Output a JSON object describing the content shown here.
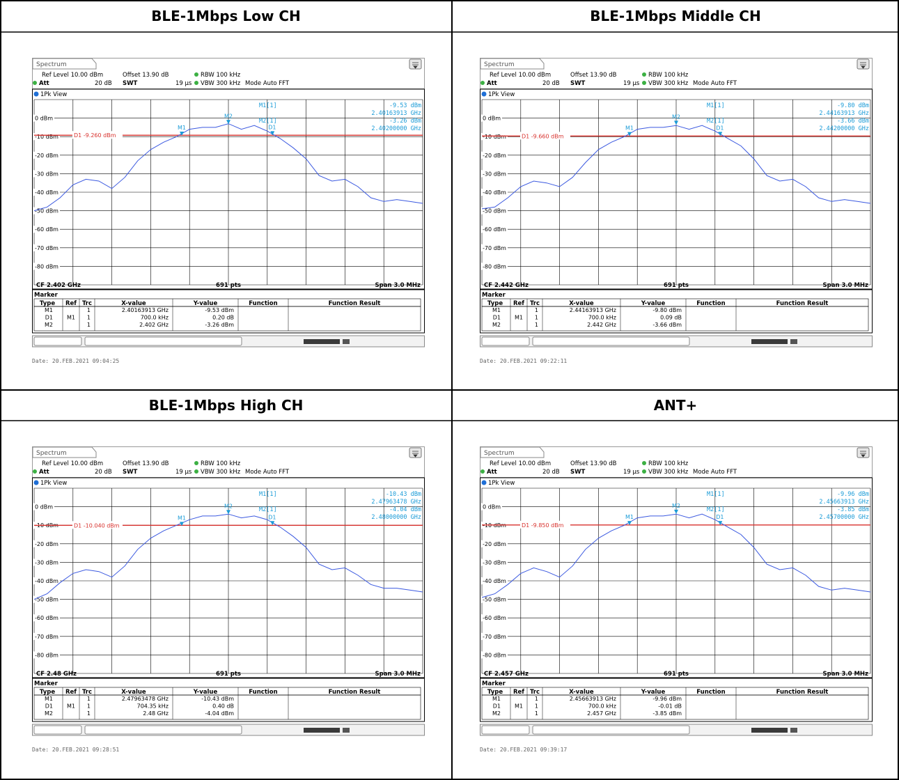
{
  "panels": [
    {
      "title": "BLE-1Mbps Low CH",
      "tab_label": "Spectrum",
      "ref_level": "Ref Level 10.00 dBm",
      "offset": "Offset 13.90 dB",
      "rbw": "RBW 100 kHz",
      "att": "Att",
      "att_value": "20 dB",
      "swt": "SWT",
      "swt_value": "19 µs",
      "vbw": "VBW 300 kHz",
      "mode": "Mode Auto FFT",
      "view": "1Pk View",
      "readout": {
        "m1_label": "M1[1]",
        "m1_level": "-9.53 dBm",
        "m1_freq": "2.40163913 GHz",
        "m2_label": "M2[1]",
        "m2_level": "-3.26 dBm",
        "m2_freq": "2.40200000 GHz"
      },
      "d1_label": "D1 -9.260 dBm",
      "cf": "CF 2.402 GHz",
      "pts": "691 pts",
      "span": "Span 3.0 MHz",
      "marker_title": "Marker",
      "table_headers": [
        "Type",
        "Ref",
        "Trc",
        "X-value",
        "Y-value",
        "Function",
        "Function Result"
      ],
      "table_rows": [
        [
          "M1",
          "",
          "1",
          "2.40163913 GHz",
          "-9.53 dBm",
          "",
          ""
        ],
        [
          "D1",
          "M1",
          "1",
          "700.0 kHz",
          "0.20 dB",
          "",
          ""
        ],
        [
          "M2",
          "",
          "1",
          "2.402 GHz",
          "-3.26 dBm",
          "",
          ""
        ]
      ],
      "date": "Date: 20.FEB.2021 09:04:25"
    },
    {
      "title": "BLE-1Mbps Middle CH",
      "tab_label": "Spectrum",
      "ref_level": "Ref Level 10.00 dBm",
      "offset": "Offset 13.90 dB",
      "rbw": "RBW 100 kHz",
      "att": "Att",
      "att_value": "20 dB",
      "swt": "SWT",
      "swt_value": "19 µs",
      "vbw": "VBW 300 kHz",
      "mode": "Mode Auto FFT",
      "view": "1Pk View",
      "readout": {
        "m1_label": "M1[1]",
        "m1_level": "-9.80 dBm",
        "m1_freq": "2.44163913 GHz",
        "m2_label": "M2[1]",
        "m2_level": "-3.66 dBm",
        "m2_freq": "2.44200000 GHz"
      },
      "d1_label": "D1 -9.660 dBm",
      "cf": "CF 2.442 GHz",
      "pts": "691 pts",
      "span": "Span 3.0 MHz",
      "marker_title": "Marker",
      "table_headers": [
        "Type",
        "Ref",
        "Trc",
        "X-value",
        "Y-value",
        "Function",
        "Function Result"
      ],
      "table_rows": [
        [
          "M1",
          "",
          "1",
          "2.44163913 GHz",
          "-9.80 dBm",
          "",
          ""
        ],
        [
          "D1",
          "M1",
          "1",
          "700.0 kHz",
          "0.09 dB",
          "",
          ""
        ],
        [
          "M2",
          "",
          "1",
          "2.442 GHz",
          "-3.66 dBm",
          "",
          ""
        ]
      ],
      "date": "Date: 20.FEB.2021 09:22:11"
    },
    {
      "title": "BLE-1Mbps High CH",
      "tab_label": "Spectrum",
      "ref_level": "Ref Level 10.00 dBm",
      "offset": "Offset 13.90 dB",
      "rbw": "RBW 100 kHz",
      "att": "Att",
      "att_value": "20 dB",
      "swt": "SWT",
      "swt_value": "19 µs",
      "vbw": "VBW 300 kHz",
      "mode": "Mode Auto FFT",
      "view": "1Pk View",
      "readout": {
        "m1_label": "M1[1]",
        "m1_level": "-10.43 dBm",
        "m1_freq": "2.47963478 GHz",
        "m2_label": "M2[1]",
        "m2_level": "-4.04 dBm",
        "m2_freq": "2.48000000 GHz"
      },
      "d1_label": "D1 -10.040 dBm",
      "cf": "CF 2.48 GHz",
      "pts": "691 pts",
      "span": "Span 3.0 MHz",
      "marker_title": "Marker",
      "table_headers": [
        "Type",
        "Ref",
        "Trc",
        "X-value",
        "Y-value",
        "Function",
        "Function Result"
      ],
      "table_rows": [
        [
          "M1",
          "",
          "1",
          "2.47963478 GHz",
          "-10.43 dBm",
          "",
          ""
        ],
        [
          "D1",
          "M1",
          "1",
          "704.35 kHz",
          "0.40 dB",
          "",
          ""
        ],
        [
          "M2",
          "",
          "1",
          "2.48 GHz",
          "-4.04 dBm",
          "",
          ""
        ]
      ],
      "date": "Date: 20.FEB.2021 09:28:51"
    },
    {
      "title": "ANT+",
      "tab_label": "Spectrum",
      "ref_level": "Ref Level 10.00 dBm",
      "offset": "Offset 13.90 dB",
      "rbw": "RBW 100 kHz",
      "att": "Att",
      "att_value": "20 dB",
      "swt": "SWT",
      "swt_value": "19 µs",
      "vbw": "VBW 300 kHz",
      "mode": "Mode Auto FFT",
      "view": "1Pk View",
      "readout": {
        "m1_label": "M1[1]",
        "m1_level": "-9.96 dBm",
        "m1_freq": "2.45663913 GHz",
        "m2_label": "M2[1]",
        "m2_level": "-3.85 dBm",
        "m2_freq": "2.45700000 GHz"
      },
      "d1_label": "D1 -9.850 dBm",
      "cf": "CF 2.457 GHz",
      "pts": "691 pts",
      "span": "Span 3.0 MHz",
      "marker_title": "Marker",
      "table_headers": [
        "Type",
        "Ref",
        "Trc",
        "X-value",
        "Y-value",
        "Function",
        "Function Result"
      ],
      "table_rows": [
        [
          "M1",
          "",
          "1",
          "2.45663913 GHz",
          "-9.96 dBm",
          "",
          ""
        ],
        [
          "D1",
          "M1",
          "1",
          "700.0 kHz",
          "-0.01 dB",
          "",
          ""
        ],
        [
          "M2",
          "",
          "1",
          "2.457 GHz",
          "-3.85 dBm",
          "",
          ""
        ]
      ],
      "date": "Date: 20.FEB.2021 09:39:17"
    }
  ],
  "chart_data": [
    {
      "type": "line",
      "x_span_mhz": [
        -1.5,
        1.5
      ],
      "ylim": [
        -90,
        10
      ],
      "y_ticks": [
        "0 dBm",
        "-10 dBm",
        "-20 dBm",
        "-30 dBm",
        "-40 dBm",
        "-50 dBm",
        "-60 dBm",
        "-70 dBm",
        "-80 dBm"
      ],
      "grid": true,
      "d1_line": -9.26,
      "markers": [
        {
          "label": "M1",
          "x": -0.36,
          "y": -9.53
        },
        {
          "label": "M2",
          "x": 0.0,
          "y": -3.26
        },
        {
          "label": "D1",
          "x": 0.34,
          "y": -9.33
        }
      ],
      "series": [
        {
          "x": [
            -1.5,
            -1.4,
            -1.3,
            -1.2,
            -1.1,
            -1.0,
            -0.9,
            -0.8,
            -0.7,
            -0.6,
            -0.5,
            -0.4,
            -0.3,
            -0.2,
            -0.1,
            0.0,
            0.1,
            0.2,
            0.3,
            0.4,
            0.5,
            0.6,
            0.7,
            0.8,
            0.9,
            1.0,
            1.1,
            1.2,
            1.3,
            1.4,
            1.5
          ],
          "y": [
            -50,
            -48,
            -43,
            -36,
            -33,
            -34,
            -38,
            -32,
            -23,
            -17,
            -13,
            -10,
            -6,
            -5,
            -5,
            -3,
            -6,
            -4,
            -7,
            -11,
            -16,
            -22,
            -31,
            -34,
            -33,
            -37,
            -43,
            -45,
            -44,
            -45,
            -46
          ]
        }
      ]
    },
    {
      "type": "line",
      "x_span_mhz": [
        -1.5,
        1.5
      ],
      "ylim": [
        -90,
        10
      ],
      "y_ticks": [
        "0 dBm",
        "-10 dBm",
        "-20 dBm",
        "-30 dBm",
        "-40 dBm",
        "-50 dBm",
        "-60 dBm",
        "-70 dBm",
        "-80 dBm"
      ],
      "grid": true,
      "d1_line": -9.66,
      "markers": [
        {
          "label": "M1",
          "x": -0.36,
          "y": -9.8
        },
        {
          "label": "M2",
          "x": 0.0,
          "y": -3.66
        },
        {
          "label": "D1",
          "x": 0.34,
          "y": -9.7
        }
      ],
      "series": [
        {
          "x": [
            -1.5,
            -1.4,
            -1.3,
            -1.2,
            -1.1,
            -1.0,
            -0.9,
            -0.8,
            -0.7,
            -0.6,
            -0.5,
            -0.4,
            -0.3,
            -0.2,
            -0.1,
            0.0,
            0.1,
            0.2,
            0.3,
            0.4,
            0.5,
            0.6,
            0.7,
            0.8,
            0.9,
            1.0,
            1.1,
            1.2,
            1.3,
            1.4,
            1.5
          ],
          "y": [
            -49,
            -48,
            -43,
            -37,
            -34,
            -35,
            -37,
            -32,
            -24,
            -17,
            -13,
            -10,
            -6,
            -5,
            -5,
            -4,
            -6,
            -4,
            -7,
            -11,
            -15,
            -22,
            -31,
            -34,
            -33,
            -37,
            -43,
            -45,
            -44,
            -45,
            -46
          ]
        }
      ]
    },
    {
      "type": "line",
      "x_span_mhz": [
        -1.5,
        1.5
      ],
      "ylim": [
        -90,
        10
      ],
      "y_ticks": [
        "0 dBm",
        "-10 dBm",
        "-20 dBm",
        "-30 dBm",
        "-40 dBm",
        "-50 dBm",
        "-60 dBm",
        "-70 dBm",
        "-80 dBm"
      ],
      "grid": true,
      "d1_line": -10.04,
      "markers": [
        {
          "label": "M1",
          "x": -0.36,
          "y": -10.43
        },
        {
          "label": "M2",
          "x": 0.0,
          "y": -4.04
        },
        {
          "label": "D1",
          "x": 0.34,
          "y": -10.03
        }
      ],
      "series": [
        {
          "x": [
            -1.5,
            -1.4,
            -1.3,
            -1.2,
            -1.1,
            -1.0,
            -0.9,
            -0.8,
            -0.7,
            -0.6,
            -0.5,
            -0.4,
            -0.3,
            -0.2,
            -0.1,
            0.0,
            0.1,
            0.2,
            0.3,
            0.4,
            0.5,
            0.6,
            0.7,
            0.8,
            0.9,
            1.0,
            1.1,
            1.2,
            1.3,
            1.4,
            1.5
          ],
          "y": [
            -50,
            -47,
            -41,
            -36,
            -34,
            -35,
            -38,
            -32,
            -23,
            -17,
            -13,
            -10,
            -7,
            -5,
            -5,
            -4,
            -6,
            -5,
            -7,
            -11,
            -16,
            -22,
            -31,
            -34,
            -33,
            -37,
            -42,
            -44,
            -44,
            -45,
            -46
          ]
        }
      ]
    },
    {
      "type": "line",
      "x_span_mhz": [
        -1.5,
        1.5
      ],
      "ylim": [
        -90,
        10
      ],
      "y_ticks": [
        "0 dBm",
        "-10 dBm",
        "-20 dBm",
        "-30 dBm",
        "-40 dBm",
        "-50 dBm",
        "-60 dBm",
        "-70 dBm",
        "-80 dBm"
      ],
      "grid": true,
      "d1_line": -9.85,
      "markers": [
        {
          "label": "M1",
          "x": -0.36,
          "y": -9.96
        },
        {
          "label": "M2",
          "x": 0.0,
          "y": -3.85
        },
        {
          "label": "D1",
          "x": 0.34,
          "y": -9.97
        }
      ],
      "series": [
        {
          "x": [
            -1.5,
            -1.4,
            -1.3,
            -1.2,
            -1.1,
            -1.0,
            -0.9,
            -0.8,
            -0.7,
            -0.6,
            -0.5,
            -0.4,
            -0.3,
            -0.2,
            -0.1,
            0.0,
            0.1,
            0.2,
            0.3,
            0.4,
            0.5,
            0.6,
            0.7,
            0.8,
            0.9,
            1.0,
            1.1,
            1.2,
            1.3,
            1.4,
            1.5
          ],
          "y": [
            -49,
            -47,
            -42,
            -36,
            -33,
            -35,
            -38,
            -32,
            -23,
            -17,
            -13,
            -10,
            -6,
            -5,
            -5,
            -4,
            -6,
            -4,
            -7,
            -11,
            -15,
            -22,
            -31,
            -34,
            -33,
            -37,
            -43,
            -45,
            -44,
            -45,
            -46
          ]
        }
      ]
    }
  ],
  "colors": {
    "trace": "#3b59e0",
    "marker": "#1a9bd7",
    "d1": "#d8302c",
    "grid": "#000000"
  }
}
